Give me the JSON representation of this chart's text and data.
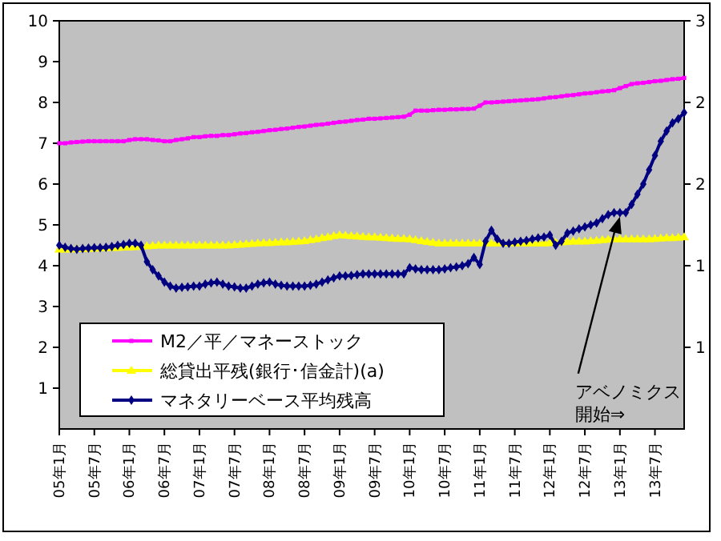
{
  "chart_data": {
    "type": "line",
    "categories": [
      "05年1月",
      null,
      null,
      null,
      null,
      null,
      "05年7月",
      null,
      null,
      null,
      null,
      null,
      "06年1月",
      null,
      null,
      null,
      null,
      null,
      "06年7月",
      null,
      null,
      null,
      null,
      null,
      "07年1月",
      null,
      null,
      null,
      null,
      null,
      "07年7月",
      null,
      null,
      null,
      null,
      null,
      "08年1月",
      null,
      null,
      null,
      null,
      null,
      "08年7月",
      null,
      null,
      null,
      null,
      null,
      "09年1月",
      null,
      null,
      null,
      null,
      null,
      "09年7月",
      null,
      null,
      null,
      null,
      null,
      "10年1月",
      null,
      null,
      null,
      null,
      null,
      "10年7月",
      null,
      null,
      null,
      null,
      null,
      "11年1月",
      null,
      null,
      null,
      null,
      null,
      "11年7月",
      null,
      null,
      null,
      null,
      null,
      "12年1月",
      null,
      null,
      null,
      null,
      null,
      "12年7月",
      null,
      null,
      null,
      null,
      null,
      "13年1月",
      null,
      null,
      null,
      null,
      null,
      "13年7月",
      null,
      null,
      null,
      null,
      null
    ],
    "ylim": [
      0,
      10
    ],
    "yticks": [
      1,
      2,
      3,
      4,
      5,
      6,
      7,
      8,
      9,
      10
    ],
    "y2lim": [
      0,
      3
    ],
    "y2ticks": [
      {
        "value": 0.6,
        "label": "1"
      },
      {
        "value": 1.2,
        "label": "1"
      },
      {
        "value": 1.8,
        "label": "2"
      },
      {
        "value": 2.4,
        "label": "2"
      },
      {
        "value": 3,
        "label": "3"
      }
    ],
    "legend": "bottom left",
    "grid": false,
    "series": [
      {
        "name": "M2／平／マネーストック",
        "color": "#ff00ff",
        "marker": "square",
        "values": [
          7.0,
          7.0,
          7.02,
          7.03,
          7.04,
          7.05,
          7.05,
          7.05,
          7.05,
          7.05,
          7.05,
          7.05,
          7.08,
          7.1,
          7.1,
          7.1,
          7.08,
          7.07,
          7.05,
          7.05,
          7.08,
          7.1,
          7.12,
          7.15,
          7.15,
          7.17,
          7.18,
          7.18,
          7.2,
          7.2,
          7.22,
          7.24,
          7.25,
          7.27,
          7.28,
          7.3,
          7.32,
          7.33,
          7.35,
          7.36,
          7.38,
          7.4,
          7.41,
          7.43,
          7.45,
          7.46,
          7.48,
          7.5,
          7.52,
          7.53,
          7.55,
          7.57,
          7.58,
          7.6,
          7.6,
          7.61,
          7.62,
          7.63,
          7.64,
          7.65,
          7.7,
          7.8,
          7.8,
          7.8,
          7.81,
          7.82,
          7.82,
          7.83,
          7.83,
          7.84,
          7.84,
          7.85,
          7.92,
          8.0,
          8.0,
          8.01,
          8.02,
          8.03,
          8.04,
          8.05,
          8.06,
          8.07,
          8.08,
          8.1,
          8.12,
          8.13,
          8.15,
          8.17,
          8.18,
          8.2,
          8.22,
          8.23,
          8.25,
          8.27,
          8.28,
          8.3,
          8.35,
          8.4,
          8.45,
          8.47,
          8.48,
          8.5,
          8.52,
          8.53,
          8.55,
          8.57,
          8.58,
          8.6
        ]
      },
      {
        "name": "総貸出平残(銀行･信金計)(a)",
        "color": "#ffff00",
        "marker": "triangle",
        "values": [
          4.4,
          4.4,
          4.4,
          4.41,
          4.41,
          4.42,
          4.42,
          4.43,
          4.43,
          4.44,
          4.44,
          4.45,
          4.45,
          4.46,
          4.47,
          4.48,
          4.49,
          4.5,
          4.5,
          4.5,
          4.5,
          4.5,
          4.5,
          4.5,
          4.5,
          4.5,
          4.5,
          4.5,
          4.5,
          4.5,
          4.51,
          4.52,
          4.53,
          4.54,
          4.55,
          4.56,
          4.56,
          4.57,
          4.58,
          4.58,
          4.59,
          4.6,
          4.61,
          4.63,
          4.65,
          4.68,
          4.7,
          4.73,
          4.75,
          4.74,
          4.73,
          4.72,
          4.71,
          4.7,
          4.7,
          4.69,
          4.68,
          4.67,
          4.66,
          4.66,
          4.65,
          4.63,
          4.61,
          4.59,
          4.57,
          4.55,
          4.55,
          4.55,
          4.55,
          4.55,
          4.55,
          4.55,
          4.55,
          4.55,
          4.55,
          4.55,
          4.55,
          4.55,
          4.55,
          4.55,
          4.55,
          4.55,
          4.55,
          4.55,
          4.56,
          4.57,
          4.58,
          4.59,
          4.6,
          4.6,
          4.6,
          4.61,
          4.62,
          4.63,
          4.64,
          4.65,
          4.65,
          4.65,
          4.65,
          4.65,
          4.65,
          4.65,
          4.66,
          4.67,
          4.68,
          4.68,
          4.69,
          4.7
        ]
      },
      {
        "name": "マネタリーベース平均残高",
        "color": "#000080",
        "marker": "diamond",
        "values": [
          4.5,
          4.45,
          4.42,
          4.4,
          4.42,
          4.43,
          4.44,
          4.44,
          4.45,
          4.47,
          4.5,
          4.52,
          4.55,
          4.55,
          4.5,
          4.1,
          3.9,
          3.75,
          3.6,
          3.5,
          3.45,
          3.47,
          3.48,
          3.5,
          3.5,
          3.55,
          3.58,
          3.6,
          3.55,
          3.5,
          3.48,
          3.45,
          3.45,
          3.5,
          3.55,
          3.58,
          3.6,
          3.55,
          3.52,
          3.5,
          3.5,
          3.5,
          3.5,
          3.52,
          3.55,
          3.6,
          3.65,
          3.7,
          3.75,
          3.75,
          3.76,
          3.78,
          3.8,
          3.8,
          3.8,
          3.8,
          3.8,
          3.8,
          3.8,
          3.8,
          3.95,
          3.92,
          3.9,
          3.9,
          3.9,
          3.9,
          3.92,
          3.95,
          3.97,
          4.0,
          4.05,
          4.2,
          4.03,
          4.6,
          4.87,
          4.65,
          4.55,
          4.55,
          4.58,
          4.6,
          4.62,
          4.65,
          4.68,
          4.7,
          4.75,
          4.5,
          4.6,
          4.8,
          4.85,
          4.9,
          4.95,
          5.0,
          5.05,
          5.15,
          5.25,
          5.3,
          5.3,
          5.3,
          5.5,
          5.75,
          6.0,
          6.35,
          6.7,
          7.05,
          7.3,
          7.5,
          7.6,
          7.75
        ]
      }
    ],
    "annotations": [
      {
        "text": "アベノミクス開始⇒",
        "x": "13年1月",
        "y": 5.2
      }
    ]
  }
}
